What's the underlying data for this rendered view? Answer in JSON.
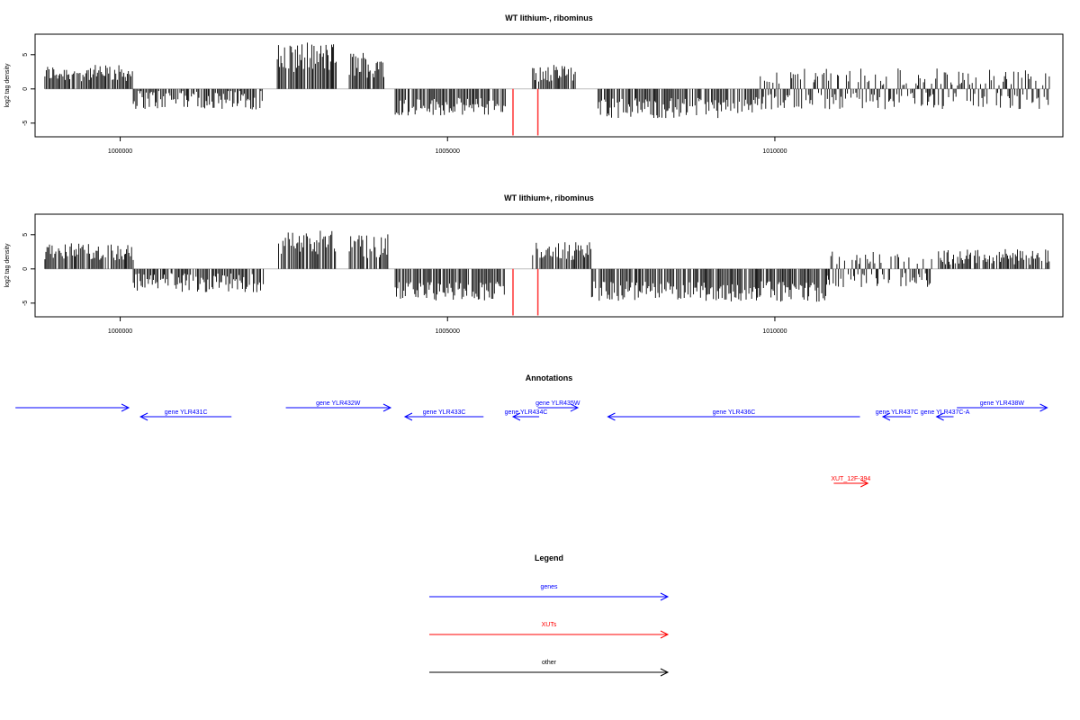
{
  "colors": {
    "genes": "#0000ff",
    "xuts": "#ff0000",
    "other": "#000000",
    "highlight": "#ff4040",
    "baseline": "#bebebe"
  },
  "chart_data": [
    {
      "type": "bar",
      "title": "WT lithium-, ribominus",
      "ylabel": "log2 tag density",
      "xlim": [
        998700,
        1014400
      ],
      "ylim": [
        -7,
        8
      ],
      "yticks": [
        -5,
        0,
        5
      ],
      "xticks": [
        1000000,
        1005000,
        1010000
      ],
      "xtick_labels": [
        "1000000",
        "1005000",
        "1010000"
      ],
      "highlight_x": [
        1006000,
        1006380
      ],
      "highlight_y": -6.8,
      "segments": [
        {
          "x0": 998850,
          "x1": 1000200,
          "mean": 2.3,
          "amp": 1.2,
          "sign": 1
        },
        {
          "x0": 1000200,
          "x1": 1002200,
          "mean": -1.5,
          "amp": 1.5,
          "sign": -1
        },
        {
          "x0": 1002400,
          "x1": 1003300,
          "mean": 4.6,
          "amp": 2.2,
          "sign": 1
        },
        {
          "x0": 1003500,
          "x1": 1004100,
          "mean": 3.6,
          "amp": 2.0,
          "sign": 1
        },
        {
          "x0": 1004200,
          "x1": 1005900,
          "mean": -2.6,
          "amp": 1.3,
          "sign": -1
        },
        {
          "x0": 1006300,
          "x1": 1006950,
          "mean": 2.3,
          "amp": 1.3,
          "sign": 1
        },
        {
          "x0": 1007300,
          "x1": 1009700,
          "mean": -2.8,
          "amp": 1.5,
          "sign": -1
        },
        {
          "x0": 1009700,
          "x1": 1014200,
          "mean": -1.0,
          "amp": 1.8,
          "sign": 0
        }
      ]
    },
    {
      "type": "bar",
      "title": "WT lithium+, ribominus",
      "ylabel": "log2 tag density",
      "xlim": [
        998700,
        1014400
      ],
      "ylim": [
        -7,
        8
      ],
      "yticks": [
        -5,
        0,
        5
      ],
      "xticks": [
        1000000,
        1005000,
        1010000
      ],
      "xtick_labels": [
        "1000000",
        "1005000",
        "1010000"
      ],
      "highlight_x": [
        1006000,
        1006380
      ],
      "highlight_y": -6.8,
      "segments": [
        {
          "x0": 998850,
          "x1": 1000200,
          "mean": 2.5,
          "amp": 1.3,
          "sign": 1
        },
        {
          "x0": 1000200,
          "x1": 1002200,
          "mean": -2.0,
          "amp": 1.4,
          "sign": -1
        },
        {
          "x0": 1002400,
          "x1": 1003300,
          "mean": 3.8,
          "amp": 2.0,
          "sign": 1
        },
        {
          "x0": 1003500,
          "x1": 1004100,
          "mean": 3.3,
          "amp": 1.8,
          "sign": 1
        },
        {
          "x0": 1004200,
          "x1": 1005900,
          "mean": -3.2,
          "amp": 1.4,
          "sign": -1
        },
        {
          "x0": 1006300,
          "x1": 1007200,
          "mean": 2.6,
          "amp": 1.3,
          "sign": 1
        },
        {
          "x0": 1007200,
          "x1": 1010800,
          "mean": -3.3,
          "amp": 1.5,
          "sign": -1
        },
        {
          "x0": 1010800,
          "x1": 1012400,
          "mean": -1.3,
          "amp": 1.6,
          "sign": 0
        },
        {
          "x0": 1012500,
          "x1": 1014200,
          "mean": 1.8,
          "amp": 1.2,
          "sign": 1
        }
      ]
    }
  ],
  "annotations": {
    "title": "Annotations",
    "genes": [
      {
        "label": "",
        "x0": 998400,
        "x1": 1000130,
        "dir": "right",
        "row": 0
      },
      {
        "label": "gene YLR431C",
        "x0": 1000310,
        "x1": 1001700,
        "dir": "left",
        "row": 1
      },
      {
        "label": "gene YLR432W",
        "x0": 1002530,
        "x1": 1004130,
        "dir": "right",
        "row": 0
      },
      {
        "label": "gene YLR433C",
        "x0": 1004350,
        "x1": 1005550,
        "dir": "left",
        "row": 1
      },
      {
        "label": "gene YLR434C",
        "x0": 1006000,
        "x1": 1006400,
        "dir": "left",
        "row": 1
      },
      {
        "label": "gene YLR435W",
        "x0": 1006380,
        "x1": 1006990,
        "dir": "right",
        "row": 0
      },
      {
        "label": "gene YLR436C",
        "x0": 1007450,
        "x1": 1011300,
        "dir": "left",
        "row": 1
      },
      {
        "label": "gene YLR437C",
        "x0": 1011650,
        "x1": 1012080,
        "dir": "left",
        "row": 1
      },
      {
        "label": "gene YLR437C-A",
        "x0": 1012470,
        "x1": 1012730,
        "dir": "left",
        "row": 1
      },
      {
        "label": "gene YLR438W",
        "x0": 1012780,
        "x1": 1014160,
        "dir": "right",
        "row": 0
      }
    ],
    "xuts": [
      {
        "label": "XUT_12F-394",
        "x0": 1010900,
        "x1": 1011420,
        "dir": "right"
      }
    ]
  },
  "legend": {
    "title": "Legend",
    "items": [
      {
        "label": "genes",
        "color_key": "genes"
      },
      {
        "label": "XUTs",
        "color_key": "xuts"
      },
      {
        "label": "other",
        "color_key": "other"
      }
    ]
  }
}
